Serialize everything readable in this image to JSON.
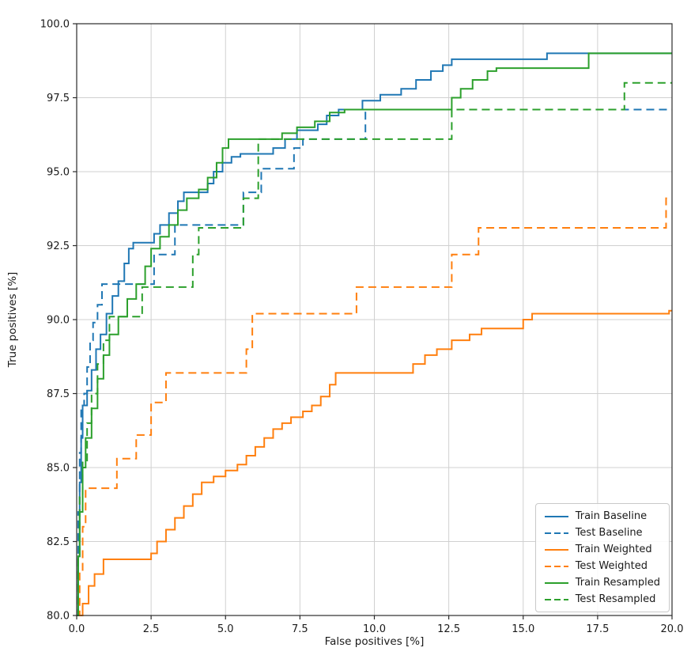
{
  "figure": {
    "background": "#ffffff"
  },
  "chart_data": {
    "type": "line",
    "title": "",
    "xlabel": "False positives [%]",
    "ylabel": "True positives [%]",
    "xlim": [
      0,
      20
    ],
    "ylim": [
      80,
      100
    ],
    "grid": true,
    "grid_color": "#d0d0d0",
    "axis_color": "#2b2b2b",
    "tick_label_color": "#1a1a1a",
    "legend_position": "lower right",
    "step": true,
    "xticks": {
      "values": [
        0,
        2.5,
        5,
        7.5,
        10,
        12.5,
        15,
        17.5,
        20
      ],
      "labels": [
        "0.0",
        "2.5",
        "5.0",
        "7.5",
        "10.0",
        "12.5",
        "15.0",
        "17.5",
        "20.0"
      ]
    },
    "yticks": {
      "values": [
        80,
        82.5,
        85,
        87.5,
        90,
        92.5,
        95,
        97.5,
        100
      ],
      "labels": [
        "80.0",
        "82.5",
        "85.0",
        "87.5",
        "90.0",
        "92.5",
        "95.0",
        "97.5",
        "100.0"
      ]
    },
    "series": [
      {
        "name": "Train Baseline",
        "color": "#1f77b4",
        "dash": "solid",
        "points": [
          [
            0,
            80
          ],
          [
            0.05,
            82
          ],
          [
            0.1,
            84.5
          ],
          [
            0.15,
            86
          ],
          [
            0.2,
            87.1
          ],
          [
            0.35,
            87.6
          ],
          [
            0.5,
            88.3
          ],
          [
            0.65,
            89.0
          ],
          [
            0.8,
            89.5
          ],
          [
            1.0,
            90.2
          ],
          [
            1.2,
            90.8
          ],
          [
            1.4,
            91.3
          ],
          [
            1.6,
            91.9
          ],
          [
            1.75,
            92.4
          ],
          [
            1.9,
            92.6
          ],
          [
            2.6,
            92.9
          ],
          [
            2.8,
            93.2
          ],
          [
            3.1,
            93.6
          ],
          [
            3.4,
            94.0
          ],
          [
            3.6,
            94.3
          ],
          [
            4.4,
            94.6
          ],
          [
            4.6,
            95.0
          ],
          [
            4.9,
            95.3
          ],
          [
            5.2,
            95.5
          ],
          [
            5.5,
            95.6
          ],
          [
            6.6,
            95.8
          ],
          [
            7.0,
            96.1
          ],
          [
            7.4,
            96.4
          ],
          [
            8.1,
            96.6
          ],
          [
            8.4,
            96.9
          ],
          [
            8.8,
            97.1
          ],
          [
            9.6,
            97.4
          ],
          [
            10.2,
            97.6
          ],
          [
            10.9,
            97.8
          ],
          [
            11.4,
            98.1
          ],
          [
            11.9,
            98.4
          ],
          [
            12.3,
            98.6
          ],
          [
            12.6,
            98.8
          ],
          [
            15.8,
            99.0
          ],
          [
            20,
            99.0
          ]
        ]
      },
      {
        "name": "Test Baseline",
        "color": "#1f77b4",
        "dash": "dashed",
        "points": [
          [
            0,
            80
          ],
          [
            0.05,
            83.5
          ],
          [
            0.1,
            85.5
          ],
          [
            0.15,
            87.1
          ],
          [
            0.25,
            87.5
          ],
          [
            0.35,
            88.4
          ],
          [
            0.45,
            89.3
          ],
          [
            0.55,
            89.9
          ],
          [
            0.7,
            90.5
          ],
          [
            0.85,
            91.2
          ],
          [
            2.6,
            92.2
          ],
          [
            3.3,
            93.2
          ],
          [
            5.6,
            94.3
          ],
          [
            6.2,
            95.1
          ],
          [
            7.3,
            95.8
          ],
          [
            7.6,
            96.1
          ],
          [
            9.7,
            97.1
          ],
          [
            20,
            97.1
          ]
        ]
      },
      {
        "name": "Train Weighted",
        "color": "#ff7f0e",
        "dash": "solid",
        "points": [
          [
            0,
            80
          ],
          [
            0.2,
            80.4
          ],
          [
            0.4,
            81.0
          ],
          [
            0.6,
            81.4
          ],
          [
            0.9,
            81.9
          ],
          [
            2.5,
            82.1
          ],
          [
            2.7,
            82.5
          ],
          [
            3.0,
            82.9
          ],
          [
            3.3,
            83.3
          ],
          [
            3.6,
            83.7
          ],
          [
            3.9,
            84.1
          ],
          [
            4.2,
            84.5
          ],
          [
            4.6,
            84.7
          ],
          [
            5.0,
            84.9
          ],
          [
            5.4,
            85.1
          ],
          [
            5.7,
            85.4
          ],
          [
            6.0,
            85.7
          ],
          [
            6.3,
            86.0
          ],
          [
            6.6,
            86.3
          ],
          [
            6.9,
            86.5
          ],
          [
            7.2,
            86.7
          ],
          [
            7.6,
            86.9
          ],
          [
            7.9,
            87.1
          ],
          [
            8.2,
            87.4
          ],
          [
            8.5,
            87.8
          ],
          [
            8.7,
            88.2
          ],
          [
            11.3,
            88.5
          ],
          [
            11.7,
            88.8
          ],
          [
            12.1,
            89.0
          ],
          [
            12.6,
            89.3
          ],
          [
            13.2,
            89.5
          ],
          [
            13.6,
            89.7
          ],
          [
            15.0,
            90.0
          ],
          [
            15.3,
            90.2
          ],
          [
            19.9,
            90.3
          ],
          [
            20,
            90.3
          ]
        ]
      },
      {
        "name": "Test Weighted",
        "color": "#ff7f0e",
        "dash": "dashed",
        "points": [
          [
            0,
            80
          ],
          [
            0.1,
            81.5
          ],
          [
            0.2,
            83.0
          ],
          [
            0.3,
            84.3
          ],
          [
            1.35,
            85.3
          ],
          [
            2.0,
            86.1
          ],
          [
            2.5,
            87.2
          ],
          [
            3.0,
            88.2
          ],
          [
            5.7,
            89.0
          ],
          [
            5.9,
            90.2
          ],
          [
            9.4,
            91.1
          ],
          [
            12.6,
            92.2
          ],
          [
            13.5,
            93.1
          ],
          [
            19.8,
            94.1
          ],
          [
            20,
            94.1
          ]
        ]
      },
      {
        "name": "Train Resampled",
        "color": "#2ca02c",
        "dash": "solid",
        "points": [
          [
            0,
            80
          ],
          [
            0.05,
            82
          ],
          [
            0.1,
            83.5
          ],
          [
            0.2,
            85.0
          ],
          [
            0.3,
            86.0
          ],
          [
            0.5,
            87.0
          ],
          [
            0.7,
            88.0
          ],
          [
            0.9,
            88.8
          ],
          [
            1.1,
            89.5
          ],
          [
            1.4,
            90.1
          ],
          [
            1.7,
            90.7
          ],
          [
            2.0,
            91.2
          ],
          [
            2.3,
            91.8
          ],
          [
            2.5,
            92.4
          ],
          [
            2.8,
            92.8
          ],
          [
            3.1,
            93.2
          ],
          [
            3.4,
            93.7
          ],
          [
            3.7,
            94.1
          ],
          [
            4.1,
            94.4
          ],
          [
            4.4,
            94.8
          ],
          [
            4.7,
            95.3
          ],
          [
            4.9,
            95.8
          ],
          [
            5.1,
            96.1
          ],
          [
            6.9,
            96.3
          ],
          [
            7.4,
            96.5
          ],
          [
            8.0,
            96.7
          ],
          [
            8.5,
            97.0
          ],
          [
            9.0,
            97.1
          ],
          [
            12.6,
            97.5
          ],
          [
            12.9,
            97.8
          ],
          [
            13.3,
            98.1
          ],
          [
            13.8,
            98.4
          ],
          [
            14.1,
            98.5
          ],
          [
            17.2,
            99.0
          ],
          [
            20,
            99.0
          ]
        ]
      },
      {
        "name": "Test Resampled",
        "color": "#2ca02c",
        "dash": "dashed",
        "points": [
          [
            0,
            80
          ],
          [
            0.05,
            82
          ],
          [
            0.1,
            84.0
          ],
          [
            0.2,
            85.2
          ],
          [
            0.35,
            86.5
          ],
          [
            0.5,
            87.5
          ],
          [
            0.7,
            88.5
          ],
          [
            0.9,
            89.3
          ],
          [
            1.1,
            90.1
          ],
          [
            2.2,
            91.1
          ],
          [
            3.9,
            92.2
          ],
          [
            4.1,
            93.1
          ],
          [
            5.6,
            94.1
          ],
          [
            6.1,
            96.1
          ],
          [
            12.6,
            97.1
          ],
          [
            18.4,
            98.0
          ],
          [
            20,
            98.0
          ]
        ]
      }
    ]
  }
}
